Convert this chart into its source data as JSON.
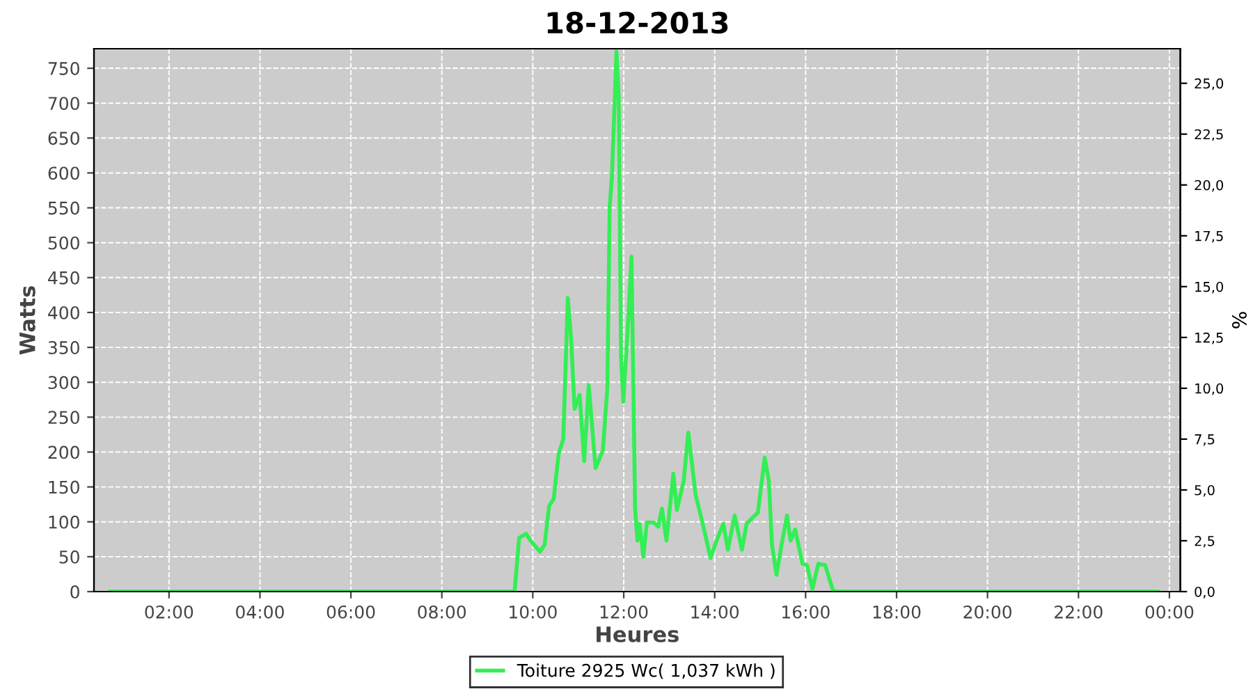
{
  "chart_data": {
    "type": "line",
    "title": "18-12-2013",
    "xlabel": "Heures",
    "ylabel": "Watts",
    "y2label": "%",
    "series": [
      {
        "name": "Toiture 2925 Wc( 1,037 kWh )",
        "color": "#33ee55",
        "x": [
          0.71,
          9.54,
          9.6,
          9.7,
          9.85,
          9.95,
          10.16,
          10.26,
          10.36,
          10.46,
          10.57,
          10.67,
          10.77,
          10.84,
          10.92,
          11.03,
          11.13,
          11.23,
          11.38,
          11.54,
          11.64,
          11.69,
          11.74,
          11.84,
          11.89,
          11.94,
          11.99,
          12.1,
          12.17,
          12.25,
          12.3,
          12.35,
          12.43,
          12.51,
          12.66,
          12.76,
          12.84,
          12.94,
          13.09,
          13.17,
          13.32,
          13.42,
          13.58,
          13.73,
          13.91,
          14.04,
          14.19,
          14.29,
          14.44,
          14.6,
          14.7,
          14.85,
          14.95,
          15.1,
          15.19,
          15.26,
          15.36,
          15.46,
          15.59,
          15.67,
          15.77,
          15.93,
          16.03,
          16.15,
          16.28,
          16.43,
          16.59,
          16.64,
          23.74
        ],
        "values": [
          0,
          0,
          0,
          77,
          83,
          73,
          57,
          67,
          123,
          133,
          198,
          218,
          421,
          365,
          262,
          282,
          187,
          296,
          177,
          202,
          292,
          550,
          595,
          774,
          708,
          337,
          272,
          391,
          480,
          119,
          73,
          97,
          50,
          99,
          99,
          93,
          119,
          73,
          169,
          117,
          159,
          228,
          139,
          99,
          48,
          73,
          97,
          60,
          109,
          60,
          97,
          107,
          113,
          192,
          159,
          67,
          24,
          63,
          109,
          73,
          89,
          40,
          38,
          4,
          40,
          38,
          4,
          0,
          0
        ]
      }
    ],
    "xlim": [
      0.35,
      24.24
    ],
    "xticks": [
      {
        "value": 2,
        "label": "02:00"
      },
      {
        "value": 4,
        "label": "04:00"
      },
      {
        "value": 6,
        "label": "06:00"
      },
      {
        "value": 8,
        "label": "08:00"
      },
      {
        "value": 10,
        "label": "10:00"
      },
      {
        "value": 12,
        "label": "12:00"
      },
      {
        "value": 14,
        "label": "14:00"
      },
      {
        "value": 16,
        "label": "16:00"
      },
      {
        "value": 18,
        "label": "18:00"
      },
      {
        "value": 20,
        "label": "20:00"
      },
      {
        "value": 22,
        "label": "22:00"
      },
      {
        "value": 24,
        "label": "00:00"
      }
    ],
    "ylim": [
      0,
      778
    ],
    "yticks": [
      0,
      50,
      100,
      150,
      200,
      250,
      300,
      350,
      400,
      450,
      500,
      550,
      600,
      650,
      700,
      750
    ],
    "y2lim": [
      0,
      26.7
    ],
    "y2ticks": [
      {
        "value": 0,
        "label": "0,0"
      },
      {
        "value": 2.5,
        "label": "2,5"
      },
      {
        "value": 5,
        "label": "5,0"
      },
      {
        "value": 7.5,
        "label": "7,5"
      },
      {
        "value": 10,
        "label": "10,0"
      },
      {
        "value": 12.5,
        "label": "12,5"
      },
      {
        "value": 15,
        "label": "15,0"
      },
      {
        "value": 17.5,
        "label": "17,5"
      },
      {
        "value": 20,
        "label": "20,0"
      },
      {
        "value": 22.5,
        "label": "22,5"
      },
      {
        "value": 25,
        "label": "25,0"
      }
    ],
    "grid": true,
    "legend": "bottom",
    "marker": "none",
    "line_style": "solid"
  }
}
